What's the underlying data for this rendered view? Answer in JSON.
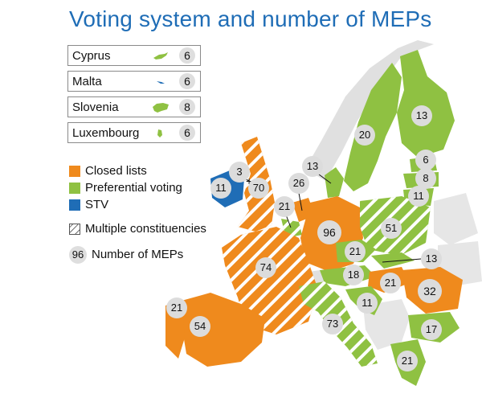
{
  "title": "Voting system and number of MEPs",
  "colors": {
    "closed_lists": "#ef8a1d",
    "preferential": "#8fc142",
    "stv": "#1f6db6",
    "non_member": "#e0e0e0",
    "title": "#1f6db6"
  },
  "small_states": [
    {
      "name": "Cyprus",
      "meps": "6",
      "icon": "cyprus-shape-icon"
    },
    {
      "name": "Malta",
      "meps": "6",
      "icon": "malta-shape-icon"
    },
    {
      "name": "Slovenia",
      "meps": "8",
      "icon": "slovenia-shape-icon"
    },
    {
      "name": "Luxembourg",
      "meps": "6",
      "icon": "luxembourg-shape-icon"
    }
  ],
  "legend": {
    "closed_lists": "Closed lists",
    "preferential": "Preferential voting",
    "stv": "STV",
    "multiple": "Multiple constituencies",
    "number_sample": "96",
    "number_label": "Number of MEPs"
  },
  "markers": [
    {
      "country": "Finland",
      "meps": "13"
    },
    {
      "country": "Sweden",
      "meps": "20"
    },
    {
      "country": "Estonia",
      "meps": "6"
    },
    {
      "country": "Latvia",
      "meps": "8"
    },
    {
      "country": "Lithuania",
      "meps": "11"
    },
    {
      "country": "Denmark",
      "meps": "13"
    },
    {
      "country": "Northern Ireland",
      "meps": "3"
    },
    {
      "country": "Ireland",
      "meps": "11"
    },
    {
      "country": "Great Britain",
      "meps": "70"
    },
    {
      "country": "Netherlands",
      "meps": "26"
    },
    {
      "country": "Belgium",
      "meps": "21"
    },
    {
      "country": "Germany",
      "meps": "96"
    },
    {
      "country": "Poland",
      "meps": "51"
    },
    {
      "country": "Czech Republic",
      "meps": "21"
    },
    {
      "country": "Slovakia",
      "meps": "13"
    },
    {
      "country": "France",
      "meps": "74"
    },
    {
      "country": "Austria",
      "meps": "18"
    },
    {
      "country": "Hungary",
      "meps": "21"
    },
    {
      "country": "Romania",
      "meps": "32"
    },
    {
      "country": "Croatia",
      "meps": "11"
    },
    {
      "country": "Portugal",
      "meps": "21"
    },
    {
      "country": "Spain",
      "meps": "54"
    },
    {
      "country": "Italy",
      "meps": "73"
    },
    {
      "country": "Bulgaria",
      "meps": "17"
    },
    {
      "country": "Greece",
      "meps": "21"
    }
  ]
}
